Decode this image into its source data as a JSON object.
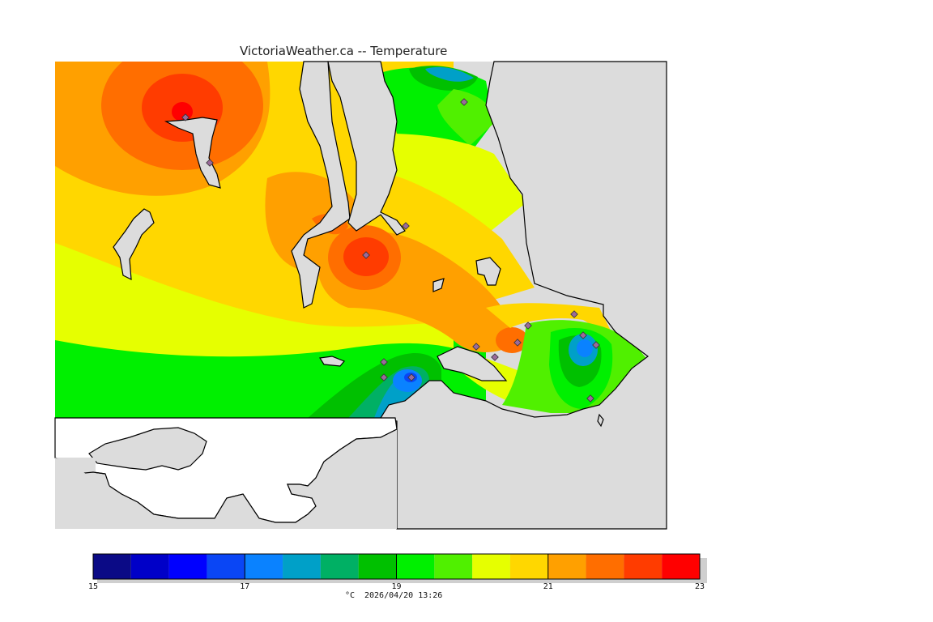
{
  "title": "VictoriaWeather.ca -- Temperature",
  "colors": {
    "water": "#dcdcdc",
    "land_outside": "#ffffff",
    "coast": "#000000",
    "station": "#7a5a8a"
  },
  "legend": {
    "ticks": [
      "15",
      "17",
      "19",
      "21",
      "23"
    ],
    "units": "°C",
    "timestamp": "2026/04/20 13:26",
    "bins": [
      {
        "min": 15.0,
        "max": 15.5,
        "color": "#0b0a86"
      },
      {
        "min": 15.5,
        "max": 16.0,
        "color": "#0000c8"
      },
      {
        "min": 16.0,
        "max": 16.5,
        "color": "#0000ff"
      },
      {
        "min": 16.5,
        "max": 17.0,
        "color": "#0a46f5"
      },
      {
        "min": 17.0,
        "max": 17.5,
        "color": "#0a82ff"
      },
      {
        "min": 17.5,
        "max": 18.0,
        "color": "#00a0c8"
      },
      {
        "min": 18.0,
        "max": 18.5,
        "color": "#00b064"
      },
      {
        "min": 18.5,
        "max": 19.0,
        "color": "#00c000"
      },
      {
        "min": 19.0,
        "max": 19.5,
        "color": "#00f000"
      },
      {
        "min": 19.5,
        "max": 20.0,
        "color": "#50f000"
      },
      {
        "min": 20.0,
        "max": 20.5,
        "color": "#e6ff00"
      },
      {
        "min": 20.5,
        "max": 21.0,
        "color": "#ffd700"
      },
      {
        "min": 21.0,
        "max": 21.5,
        "color": "#ffa000"
      },
      {
        "min": 21.5,
        "max": 22.0,
        "color": "#ff6e00"
      },
      {
        "min": 22.0,
        "max": 22.5,
        "color": "#ff3c00"
      },
      {
        "min": 22.5,
        "max": 23.0,
        "color": "#ff0000"
      }
    ]
  }
}
